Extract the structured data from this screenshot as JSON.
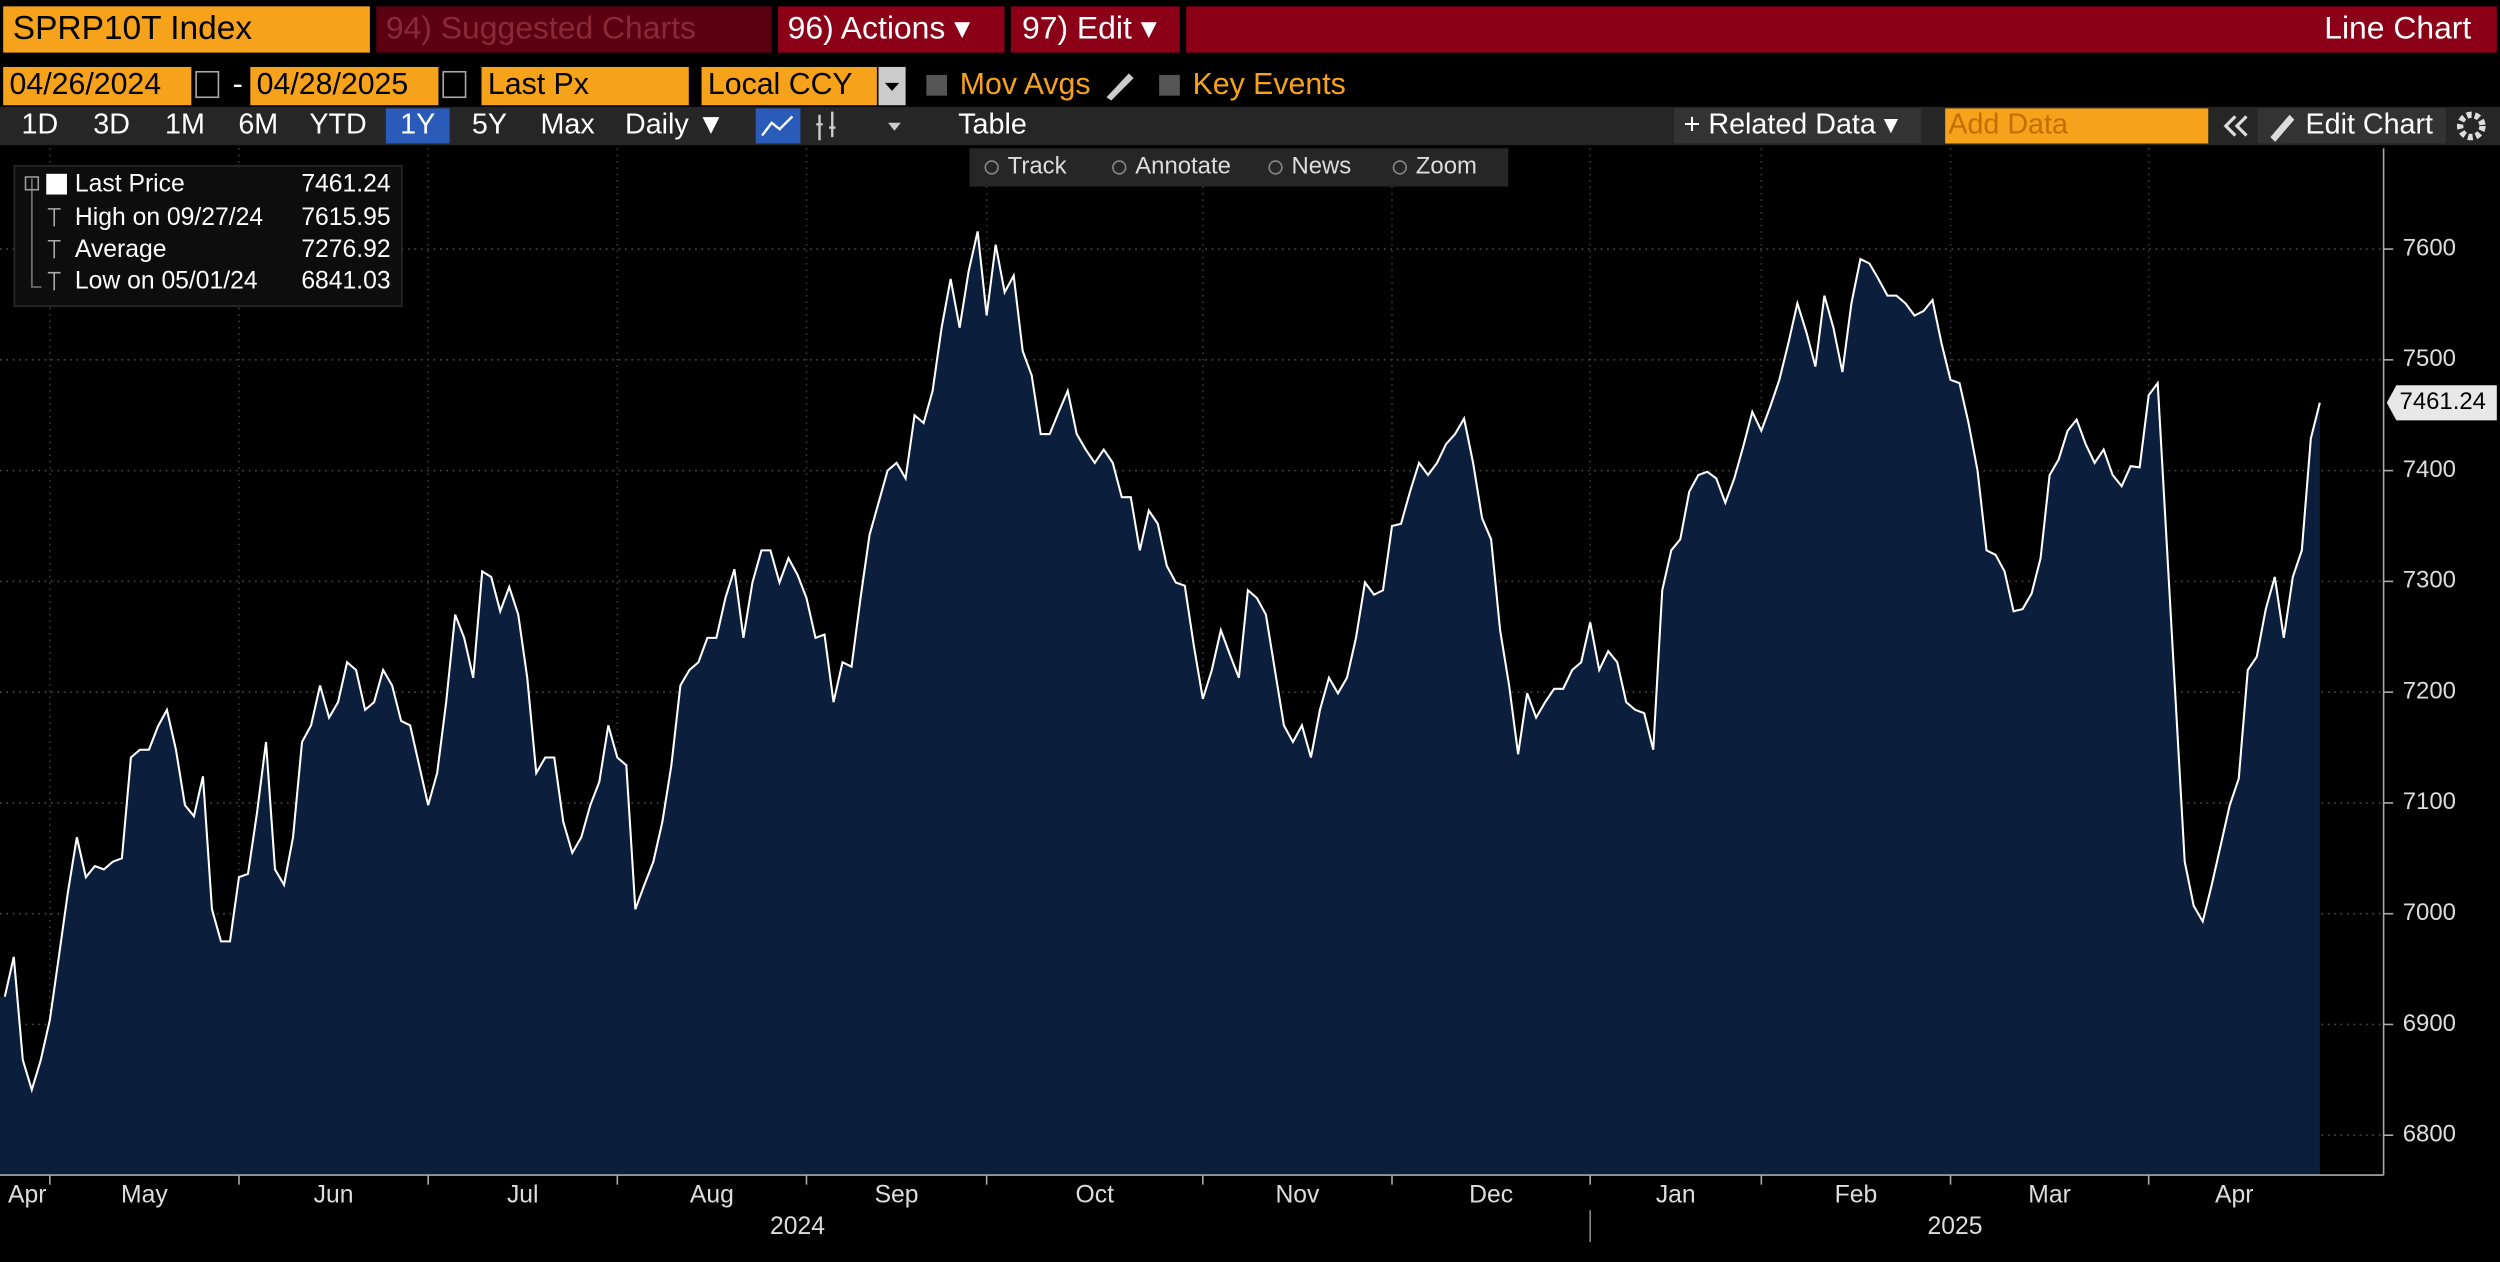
{
  "ui": {
    "security": "SPRP10T Index",
    "suggested": "94) Suggested Charts",
    "actions": "96) Actions ▾",
    "edit": "97) Edit ▾",
    "chart_type": "Line Chart",
    "start_date": "04/26/2024",
    "date_sep": "-",
    "end_date": "04/28/2025",
    "field": "Last Px",
    "currency": "Local CCY",
    "mov_avgs": "Mov Avgs",
    "key_events": "Key Events",
    "periods": [
      "1D",
      "3D",
      "1M",
      "6M",
      "YTD",
      "1Y",
      "5Y",
      "Max"
    ],
    "selected_period": "1Y",
    "frequency": "Daily ▼",
    "table": "Table",
    "related": "+ Related Data ▾",
    "add_data": "Add Data",
    "edit_chart": "Edit Chart",
    "tools": [
      "Track",
      "Annotate",
      "News",
      "Zoom"
    ]
  },
  "chart_data": {
    "type": "line",
    "series": [
      {
        "name": "Last Price",
        "color": "#ffffff",
        "fill": "#0b1f3d",
        "values": [
          6925,
          6961,
          6868,
          6841.03,
          6868,
          6904,
          6961,
          7019,
          7069,
          7033,
          7043,
          7040,
          7047,
          7050,
          7141,
          7148,
          7148,
          7169,
          7184,
          7148,
          7098,
          7088,
          7124,
          7004,
          6975,
          6975,
          7033,
          7036,
          7091,
          7155,
          7040,
          7026,
          7069,
          7155,
          7170,
          7206,
          7177,
          7191,
          7227,
          7220,
          7184,
          7191,
          7220,
          7206,
          7174,
          7170,
          7134,
          7098,
          7127,
          7191,
          7270,
          7249,
          7213,
          7309,
          7304,
          7273,
          7295,
          7270,
          7213,
          7127,
          7141,
          7141,
          7083,
          7055,
          7069,
          7098,
          7119,
          7170,
          7141,
          7134,
          7004,
          7026,
          7047,
          7083,
          7134,
          7206,
          7220,
          7227,
          7249,
          7249,
          7285,
          7311,
          7249,
          7299,
          7328,
          7328,
          7299,
          7321,
          7306,
          7285,
          7249,
          7252,
          7191,
          7227,
          7223,
          7285,
          7342,
          7371,
          7400,
          7407,
          7393,
          7450,
          7443,
          7472,
          7529,
          7573,
          7529,
          7580,
          7615.95,
          7540,
          7604,
          7561,
          7576,
          7508,
          7486,
          7433,
          7433,
          7453,
          7472,
          7433,
          7419,
          7407,
          7419,
          7407,
          7376,
          7376,
          7328,
          7364,
          7352,
          7314,
          7299,
          7296,
          7242,
          7194,
          7220,
          7256,
          7234,
          7213,
          7292,
          7285,
          7270,
          7220,
          7170,
          7155,
          7170,
          7141,
          7184,
          7213,
          7199,
          7213,
          7249,
          7299,
          7288,
          7292,
          7350,
          7352,
          7381,
          7407,
          7396,
          7407,
          7424,
          7433,
          7447,
          7407,
          7357,
          7338,
          7256,
          7206,
          7144,
          7199,
          7177,
          7191,
          7203,
          7203,
          7220,
          7227,
          7263,
          7220,
          7237,
          7227,
          7191,
          7184,
          7181,
          7148,
          7292,
          7328,
          7338,
          7381,
          7396,
          7399,
          7393,
          7371,
          7393,
          7422,
          7453,
          7436,
          7458,
          7482,
          7515,
          7551,
          7525,
          7494,
          7558,
          7529,
          7489,
          7551,
          7591,
          7587,
          7573,
          7558,
          7558,
          7551,
          7540,
          7544,
          7554,
          7515,
          7482,
          7479,
          7443,
          7400,
          7328,
          7324,
          7309,
          7273,
          7275,
          7289,
          7321,
          7396,
          7410,
          7436,
          7446,
          7424,
          7407,
          7419,
          7396,
          7386,
          7404,
          7403,
          7468,
          7479,
          7335,
          7191,
          7047,
          7007,
          6993,
          7026,
          7062,
          7098,
          7122,
          7220,
          7232,
          7275,
          7304,
          7249,
          7304,
          7328,
          7429,
          7461.24
        ]
      }
    ],
    "categories": [
      "Apr",
      null,
      null,
      null,
      null,
      "May",
      null,
      null,
      null,
      null,
      null,
      null,
      null,
      null,
      null,
      null,
      null,
      null,
      null,
      null,
      null,
      null,
      null,
      null,
      null,
      null,
      "Jun",
      null,
      null,
      null,
      null,
      null,
      null,
      null,
      null,
      null,
      null,
      null,
      null,
      null,
      null,
      null,
      null,
      null,
      null,
      null,
      null,
      "Jul",
      null,
      null,
      null,
      null,
      null,
      null,
      null,
      null,
      null,
      null,
      null,
      null,
      null,
      null,
      null,
      null,
      null,
      null,
      null,
      null,
      "Aug",
      null,
      null,
      null,
      null,
      null,
      null,
      null,
      null,
      null,
      null,
      null,
      null,
      null,
      null,
      null,
      null,
      null,
      null,
      null,
      null,
      "Sep",
      null,
      null,
      null,
      null,
      null,
      null,
      null,
      null,
      null,
      null,
      null,
      null,
      null,
      null,
      null,
      null,
      null,
      null,
      null,
      "Oct",
      null,
      null,
      null,
      null,
      null,
      null,
      null,
      null,
      null,
      null,
      null,
      null,
      null,
      null,
      null,
      null,
      null,
      null,
      null,
      null,
      null,
      null,
      null,
      "Nov",
      null,
      null,
      null,
      null,
      null,
      null,
      null,
      null,
      null,
      null,
      null,
      null,
      null,
      null,
      null,
      null,
      null,
      null,
      null,
      null,
      "Dec",
      null,
      null,
      null,
      null,
      null,
      null,
      null,
      null,
      null,
      null,
      null,
      null,
      null,
      null,
      null,
      null,
      null,
      null,
      null,
      null,
      null,
      "Jan",
      null,
      null,
      null,
      null,
      null,
      null,
      null,
      null,
      null,
      null,
      null,
      null,
      null,
      null,
      null,
      null,
      null,
      null,
      "Feb",
      null,
      null,
      null,
      null,
      null,
      null,
      null,
      null,
      null,
      null,
      null,
      null,
      null,
      null,
      null,
      null,
      null,
      null,
      null,
      null,
      "Mar",
      null,
      null,
      null,
      null,
      null,
      null,
      null,
      null,
      null,
      null,
      null,
      null,
      null,
      null,
      null,
      null,
      null,
      null,
      null,
      null,
      null,
      "Apr",
      null,
      null,
      null,
      null,
      null,
      null,
      null,
      null,
      null,
      null,
      null,
      null,
      null,
      null,
      null,
      null,
      null,
      null,
      null
    ],
    "year_categories": [
      "2024",
      null,
      null,
      null,
      null,
      null,
      null,
      null,
      null,
      null,
      null,
      null,
      null,
      null,
      null,
      null,
      null,
      null,
      null,
      null,
      null,
      null,
      null,
      null,
      null,
      null,
      null,
      null,
      null,
      null,
      null,
      null,
      null,
      null,
      null,
      null,
      null,
      null,
      null,
      null,
      null,
      null,
      null,
      null,
      null,
      null,
      null,
      null,
      null,
      null,
      null,
      null,
      null,
      null,
      null,
      null,
      null,
      null,
      null,
      null,
      null,
      null,
      null,
      null,
      null,
      null,
      null,
      null,
      null,
      null,
      null,
      null,
      null,
      null,
      null,
      null,
      null,
      null,
      null,
      null,
      null,
      null,
      null,
      null,
      null,
      null,
      null,
      null,
      null,
      null,
      null,
      null,
      null,
      null,
      null,
      null,
      null,
      null,
      null,
      null,
      null,
      null,
      null,
      null,
      null,
      null,
      null,
      null,
      null,
      null,
      null,
      null,
      null,
      null,
      null,
      null,
      null,
      null,
      null,
      null,
      null,
      null,
      null,
      null,
      null,
      null,
      null,
      null,
      null,
      null,
      null,
      null,
      null,
      null,
      null,
      null,
      null,
      null,
      null,
      null,
      null,
      null,
      null,
      null,
      null,
      null,
      null,
      null,
      null,
      null,
      null,
      null,
      null,
      null,
      null,
      null,
      null,
      null,
      null,
      null,
      null,
      null,
      null,
      null,
      null,
      null,
      null,
      null,
      null,
      null,
      null,
      null,
      null,
      null,
      null,
      null,
      "2025",
      null,
      null,
      null,
      null,
      null,
      null,
      null,
      null,
      null,
      null,
      null,
      null,
      null,
      null,
      null,
      null,
      null,
      null,
      null,
      null,
      null,
      null,
      null,
      null,
      null,
      null,
      null,
      null,
      null,
      null,
      null,
      null,
      null,
      null,
      null,
      null,
      null,
      null,
      null,
      null,
      null,
      null,
      null,
      null,
      null,
      null,
      null,
      null,
      null,
      null,
      null,
      null,
      null,
      null,
      null,
      null,
      null,
      null,
      null,
      null,
      null,
      null,
      null,
      null,
      null,
      null,
      null,
      null,
      null,
      null,
      null,
      null,
      null,
      null,
      null,
      null,
      null,
      null,
      null,
      null,
      null
    ],
    "ylim": [
      6764,
      7691
    ],
    "yticks": [
      6800,
      6900,
      7000,
      7100,
      7200,
      7300,
      7400,
      7500,
      7600
    ],
    "grid": true,
    "stats": [
      {
        "label": "High on 09/27/24",
        "value": 7615.95
      },
      {
        "label": "Average",
        "value": 7276.92
      },
      {
        "label": "Low on 05/01/24",
        "value": 6841.03
      }
    ]
  }
}
